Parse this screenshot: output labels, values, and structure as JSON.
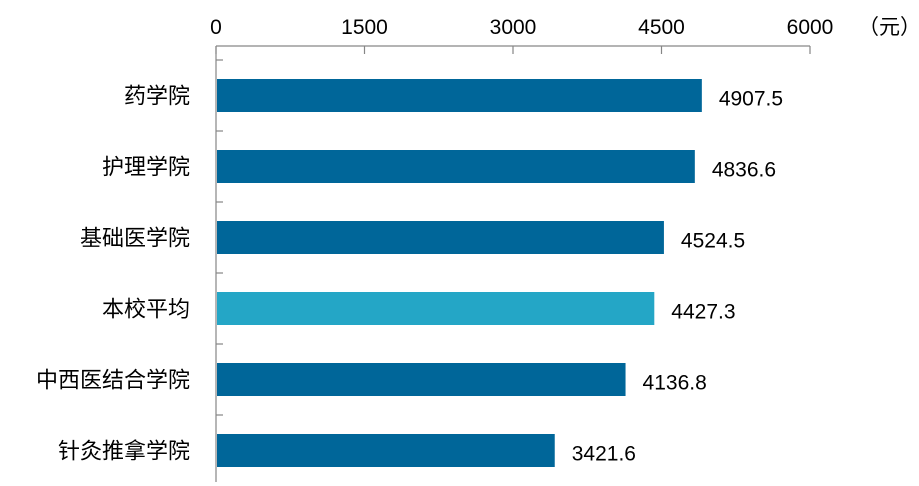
{
  "chart_data": {
    "type": "bar",
    "orientation": "horizontal",
    "x_axis_position": "top",
    "unit": "（元）",
    "xlim": [
      0,
      6000
    ],
    "xticks": [
      "0",
      "1500",
      "3000",
      "4500",
      "6000"
    ],
    "grid": false,
    "categories": [
      "药学院",
      "护理学院",
      "基础医学院",
      "本校平均",
      "中西医结合学院",
      "针灸推拿学院"
    ],
    "values": [
      4907.5,
      4836.6,
      4524.5,
      4427.3,
      4136.8,
      3421.6
    ],
    "value_labels": [
      "4907.5",
      "4836.6",
      "4524.5",
      "4427.3",
      "4136.8",
      "3421.6"
    ],
    "colors": {
      "default_bar": "#006699",
      "highlight_bar": "#24A6C6",
      "highlight_category": "本校平均"
    }
  }
}
